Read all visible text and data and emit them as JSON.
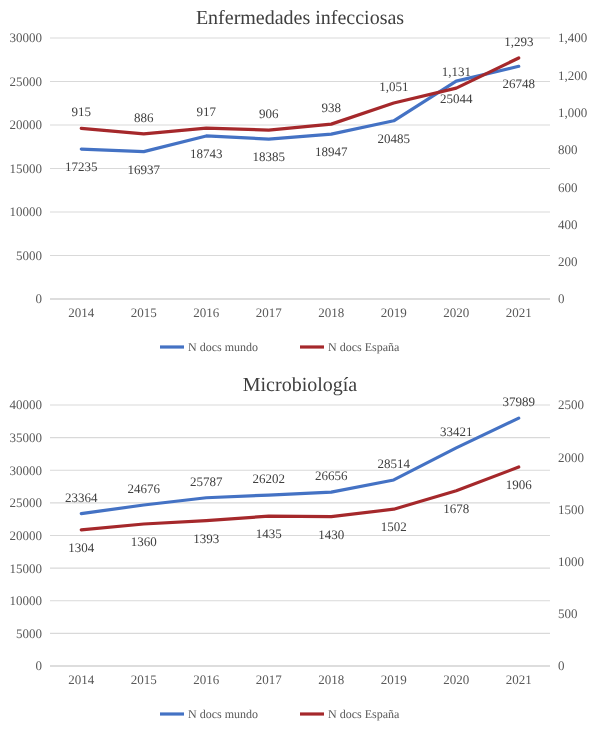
{
  "chart_data": [
    {
      "type": "line",
      "title": "Enfermedades infecciosas",
      "categories": [
        "2014",
        "2015",
        "2016",
        "2017",
        "2018",
        "2019",
        "2020",
        "2021"
      ],
      "series": [
        {
          "name": "N docs mundo",
          "color": "#4472c4",
          "values": [
            17235,
            16937,
            18743,
            18385,
            18947,
            20485,
            25044,
            26748
          ],
          "value_labels": [
            "17235",
            "16937",
            "18743",
            "18385",
            "18947",
            "20485",
            "25044",
            "26748"
          ]
        },
        {
          "name": "N docs España",
          "color": "#a5282b",
          "axis": "y2",
          "values": [
            915,
            886,
            917,
            906,
            938,
            1051,
            1131,
            1293
          ],
          "value_labels": [
            "915",
            "886",
            "917",
            "906",
            "938",
            "1,051",
            "1,131",
            "1,293"
          ]
        }
      ],
      "ylim": [
        0,
        30000
      ],
      "yticks": [
        0,
        5000,
        10000,
        15000,
        20000,
        25000,
        30000
      ],
      "y2lim": [
        0,
        1400
      ],
      "y2ticks": [
        0,
        200,
        400,
        600,
        800,
        {
          "value": 1000,
          "label": "1,000"
        },
        {
          "value": 1200,
          "label": "1,200"
        },
        {
          "value": 1400,
          "label": "1,400"
        }
      ],
      "grid": "y",
      "legend": "bottom",
      "marker": "none",
      "line_style": "solid"
    },
    {
      "type": "line",
      "title": "Microbiología",
      "categories": [
        "2014",
        "2015",
        "2016",
        "2017",
        "2018",
        "2019",
        "2020",
        "2021"
      ],
      "series": [
        {
          "name": "N docs mundo",
          "color": "#4472c4",
          "values": [
            23364,
            24676,
            25787,
            26202,
            26656,
            28514,
            33421,
            37989
          ]
        },
        {
          "name": "N docs España",
          "color": "#a5282b",
          "axis": "y2",
          "values": [
            1304,
            1360,
            1393,
            1435,
            1430,
            1502,
            1678,
            1906
          ]
        }
      ],
      "ylim": [
        0,
        40000
      ],
      "yticks": [
        0,
        5000,
        10000,
        15000,
        20000,
        25000,
        30000,
        35000,
        40000
      ],
      "y2lim": [
        0,
        2500
      ],
      "y2ticks": [
        0,
        500,
        1000,
        1500,
        2000,
        2500
      ],
      "grid": "y",
      "legend": "bottom",
      "data_labels": true,
      "marker": "none",
      "line_style": "solid"
    }
  ]
}
